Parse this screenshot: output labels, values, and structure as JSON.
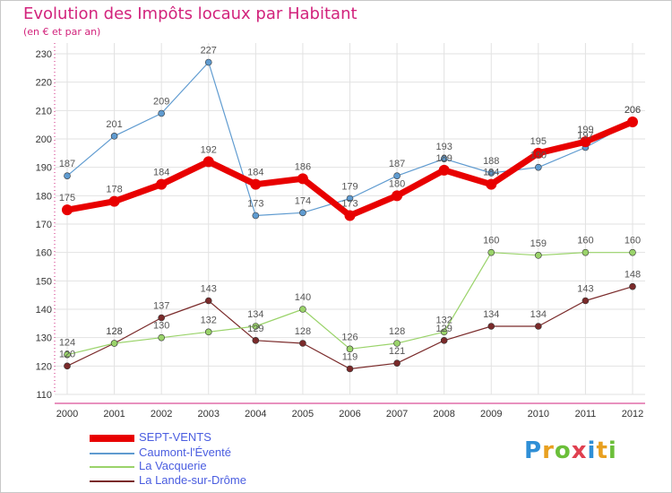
{
  "header": {
    "title": "Evolution des Impôts locaux par Habitant",
    "subtitle": "(en € et par an)"
  },
  "brand": {
    "letters": [
      {
        "ch": "P",
        "color": "#2f8fd6"
      },
      {
        "ch": "r",
        "color": "#e8a020"
      },
      {
        "ch": "o",
        "color": "#6bbf3a"
      },
      {
        "ch": "x",
        "color": "#e04050"
      },
      {
        "ch": "i",
        "color": "#2f8fd6"
      },
      {
        "ch": "t",
        "color": "#e8a020"
      },
      {
        "ch": "i",
        "color": "#6bbf3a"
      }
    ]
  },
  "chart_data": {
    "type": "line",
    "x": [
      "2000",
      "2001",
      "2002",
      "2003",
      "2004",
      "2005",
      "2006",
      "2007",
      "2008",
      "2009",
      "2010",
      "2011",
      "2012"
    ],
    "yticks": [
      110,
      120,
      130,
      140,
      150,
      160,
      170,
      180,
      190,
      200,
      210,
      220,
      230
    ],
    "ylim": [
      110,
      230
    ],
    "grid": true,
    "legend_position": "bottom-left",
    "series": [
      {
        "name": "SEPT-VENTS",
        "color": "#e80000",
        "values": [
          175,
          178,
          184,
          192,
          184,
          186,
          173,
          180,
          189,
          184,
          195,
          199,
          206
        ],
        "labels": [
          "175",
          "178",
          "184",
          "192",
          "184",
          "186",
          "173",
          "180",
          "189",
          "184",
          "195",
          "199",
          "206"
        ],
        "width": 7,
        "marker": 6
      },
      {
        "name": "Caumont-l'Éventé",
        "color": "#5f9bd0",
        "values": [
          187,
          201,
          209,
          227,
          173,
          174,
          179,
          187,
          193,
          188,
          190,
          197,
          206
        ],
        "labels": [
          "187",
          "201",
          "209",
          "227",
          "173",
          "174",
          "179",
          "187",
          "193",
          "188",
          "190",
          "197",
          "206"
        ],
        "width": 1.2,
        "marker": 3.5
      },
      {
        "name": "La Vacquerie",
        "color": "#9ad36a",
        "values": [
          124,
          128,
          130,
          132,
          134,
          140,
          126,
          128,
          132,
          160,
          159,
          160,
          160
        ],
        "labels": [
          "124",
          "128",
          "130",
          "132",
          "134",
          "140",
          "126",
          "128",
          "132",
          "160",
          "159",
          "160",
          "160"
        ],
        "width": 1.2,
        "marker": 3.5
      },
      {
        "name": "La Lande-sur-Drôme",
        "color": "#7a2a2a",
        "values": [
          120,
          128,
          137,
          143,
          129,
          128,
          119,
          121,
          129,
          134,
          134,
          143,
          148
        ],
        "labels": [
          "120",
          "128",
          "137",
          "143",
          "129",
          "128",
          "119",
          "121",
          "129",
          "134",
          "134",
          "143",
          "148"
        ],
        "width": 1.2,
        "marker": 3.5
      }
    ]
  }
}
